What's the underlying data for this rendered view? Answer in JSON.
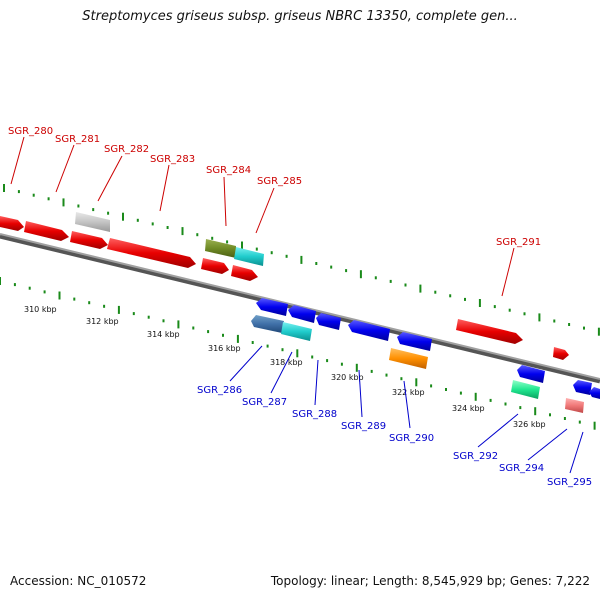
{
  "title": "Streptomyces griseus subsp. griseus NBRC 13350, complete gen...",
  "footer": {
    "accession": "Accession: NC_010572",
    "topology": "Topology: linear; Length: 8,545,929 bp; Genes: 7,222"
  },
  "colors": {
    "backbone": "#808080",
    "tick": "#1a8a1a",
    "forward_label": "#cc0000",
    "reverse_label": "#0000cc"
  },
  "scale_labels": [
    "310 kbp",
    "312 kbp",
    "314 kbp",
    "316 kbp",
    "318 kbp",
    "320 kbp",
    "322 kbp",
    "324 kbp",
    "326 kbp"
  ],
  "genes": [
    {
      "id": "SGR_280",
      "strand": "+"
    },
    {
      "id": "SGR_281",
      "strand": "+"
    },
    {
      "id": "SGR_282",
      "strand": "+"
    },
    {
      "id": "SGR_283",
      "strand": "+"
    },
    {
      "id": "SGR_284",
      "strand": "+"
    },
    {
      "id": "SGR_285",
      "strand": "+"
    },
    {
      "id": "SGR_286",
      "strand": "-"
    },
    {
      "id": "SGR_287",
      "strand": "-"
    },
    {
      "id": "SGR_288",
      "strand": "-"
    },
    {
      "id": "SGR_289",
      "strand": "-"
    },
    {
      "id": "SGR_290",
      "strand": "-"
    },
    {
      "id": "SGR_291",
      "strand": "+"
    },
    {
      "id": "SGR_292",
      "strand": "-"
    },
    {
      "id": "SGR_294",
      "strand": "-"
    },
    {
      "id": "SGR_295",
      "strand": "-"
    }
  ]
}
